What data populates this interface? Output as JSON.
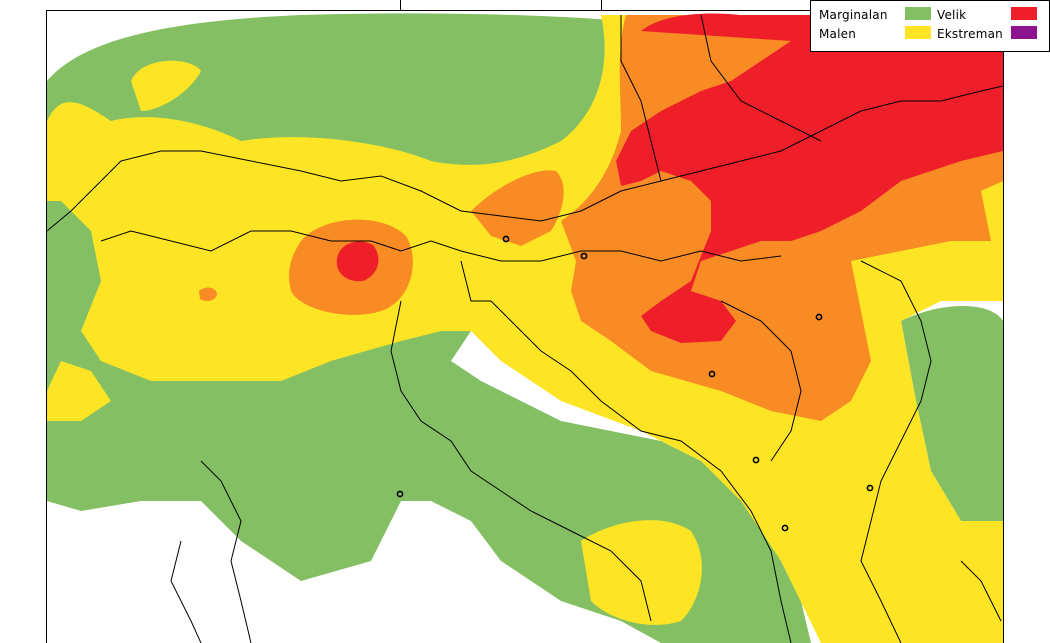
{
  "legend": {
    "items": [
      {
        "label": "Marginalan",
        "color": "#85bf63"
      },
      {
        "label": "Malen",
        "color": "#fde525"
      },
      {
        "label": "Velik",
        "color": "#ef1f2a"
      },
      {
        "label": "Ekstreman",
        "color": "#8d1491"
      }
    ]
  },
  "colors": {
    "marginal": "#85bf63",
    "low": "#fde525",
    "moderate": "#f88b24",
    "high": "#ef1f2a",
    "extreme": "#8d1491",
    "background": "#ffffff",
    "borders": "#000000"
  },
  "map": {
    "cities": [
      "city-marker",
      "city-marker",
      "city-marker",
      "city-marker",
      "city-marker",
      "city-marker",
      "city-marker",
      "city-marker",
      "city-marker"
    ]
  }
}
